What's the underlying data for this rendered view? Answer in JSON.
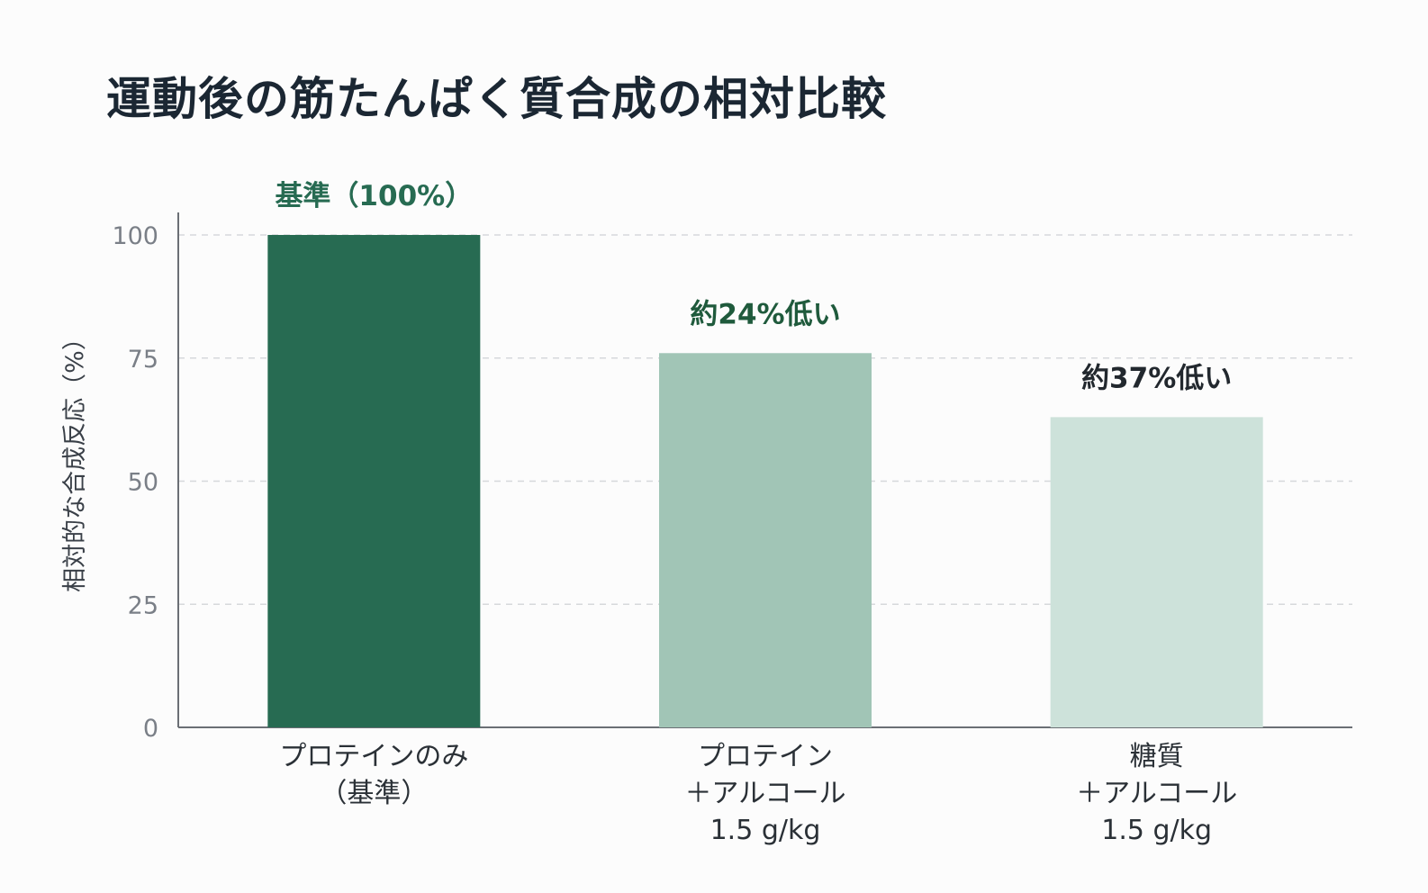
{
  "title": "運動後の筋たんぱく質合成の相対比較",
  "chart_data": {
    "type": "bar",
    "title": "運動後の筋たんぱく質合成の相対比較",
    "ylabel": "相対的な合成反応（%）",
    "xlabel": "",
    "ylim": [
      0,
      100
    ],
    "yticks": [
      0,
      25,
      50,
      75,
      100
    ],
    "grid": true,
    "categories": [
      [
        "プロテインのみ",
        "（基準）"
      ],
      [
        "プロテイン",
        "＋アルコール",
        "1.5 g/kg"
      ],
      [
        "糖質",
        "＋アルコール",
        "1.5 g/kg"
      ]
    ],
    "values": [
      100,
      76,
      63
    ],
    "colors": [
      "#276b52",
      "#a1c5b6",
      "#cde2da"
    ],
    "annotations": [
      {
        "text": "基準（100%）",
        "color": "#276b52"
      },
      {
        "text": "約24%低い",
        "color": "#1f5a3c"
      },
      {
        "text": "約37%低い",
        "color": "#22282e"
      }
    ]
  }
}
